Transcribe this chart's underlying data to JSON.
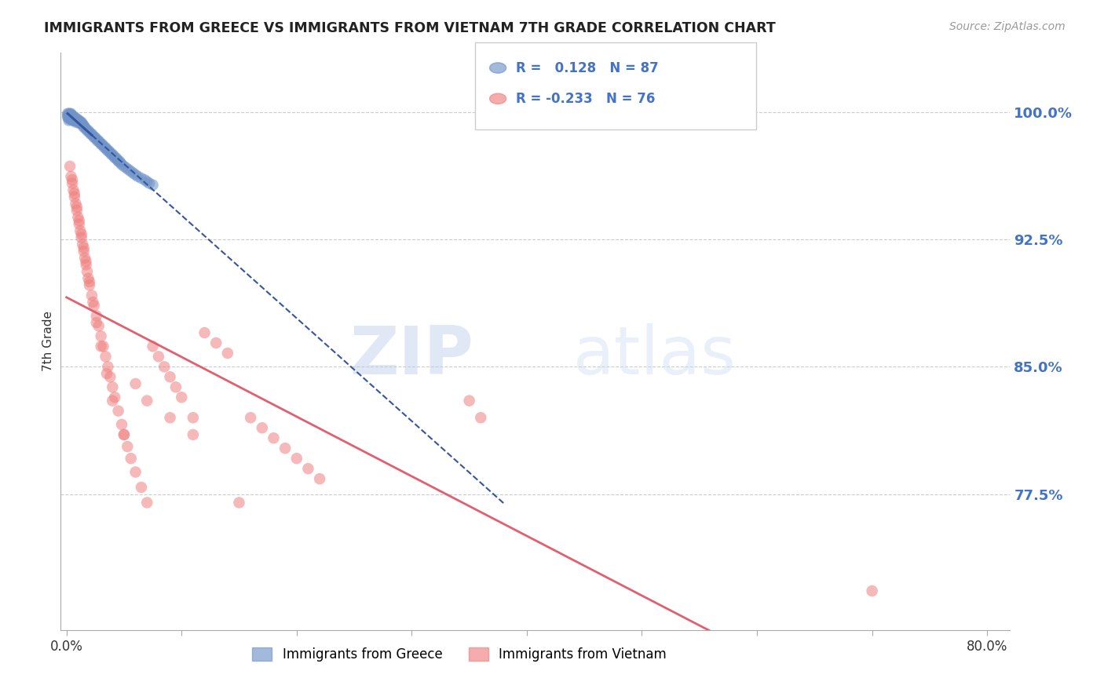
{
  "title": "IMMIGRANTS FROM GREECE VS IMMIGRANTS FROM VIETNAM 7TH GRADE CORRELATION CHART",
  "source": "Source: ZipAtlas.com",
  "ylabel": "7th Grade",
  "ytick_labels": [
    "100.0%",
    "92.5%",
    "85.0%",
    "77.5%"
  ],
  "ytick_values": [
    1.0,
    0.925,
    0.85,
    0.775
  ],
  "ymin": 0.695,
  "ymax": 1.035,
  "xmin": -0.005,
  "xmax": 0.82,
  "N_greece": 87,
  "N_vietnam": 76,
  "color_greece": "#7094c8",
  "color_vietnam": "#f08080",
  "trendline_greece": "#3555a0",
  "trendline_vietnam": "#e06070",
  "watermark_zip": "ZIP",
  "watermark_atlas": "atlas",
  "greece_x": [
    0.001,
    0.001,
    0.001,
    0.002,
    0.002,
    0.002,
    0.002,
    0.002,
    0.003,
    0.003,
    0.003,
    0.003,
    0.004,
    0.004,
    0.004,
    0.004,
    0.005,
    0.005,
    0.005,
    0.005,
    0.006,
    0.006,
    0.006,
    0.007,
    0.007,
    0.007,
    0.008,
    0.008,
    0.008,
    0.009,
    0.009,
    0.01,
    0.01,
    0.011,
    0.011,
    0.012,
    0.012,
    0.013,
    0.013,
    0.014,
    0.015,
    0.015,
    0.016,
    0.017,
    0.018,
    0.019,
    0.02,
    0.021,
    0.022,
    0.023,
    0.024,
    0.025,
    0.026,
    0.027,
    0.028,
    0.029,
    0.03,
    0.031,
    0.032,
    0.033,
    0.034,
    0.035,
    0.036,
    0.037,
    0.038,
    0.039,
    0.04,
    0.041,
    0.042,
    0.043,
    0.044,
    0.045,
    0.046,
    0.047,
    0.048,
    0.05,
    0.052,
    0.054,
    0.056,
    0.058,
    0.06,
    0.062,
    0.065,
    0.068,
    0.07,
    0.072,
    0.075
  ],
  "greece_y": [
    0.999,
    0.998,
    0.997,
    0.999,
    0.998,
    0.997,
    0.996,
    0.995,
    0.999,
    0.998,
    0.997,
    0.996,
    0.999,
    0.998,
    0.997,
    0.996,
    0.998,
    0.997,
    0.996,
    0.995,
    0.997,
    0.996,
    0.995,
    0.997,
    0.996,
    0.995,
    0.996,
    0.995,
    0.994,
    0.996,
    0.995,
    0.995,
    0.994,
    0.995,
    0.994,
    0.994,
    0.993,
    0.994,
    0.993,
    0.993,
    0.992,
    0.991,
    0.991,
    0.99,
    0.989,
    0.989,
    0.988,
    0.987,
    0.987,
    0.986,
    0.985,
    0.985,
    0.984,
    0.983,
    0.983,
    0.982,
    0.981,
    0.981,
    0.98,
    0.979,
    0.979,
    0.978,
    0.977,
    0.977,
    0.976,
    0.975,
    0.975,
    0.974,
    0.973,
    0.973,
    0.972,
    0.971,
    0.971,
    0.97,
    0.969,
    0.968,
    0.967,
    0.966,
    0.965,
    0.964,
    0.963,
    0.962,
    0.961,
    0.96,
    0.959,
    0.958,
    0.957
  ],
  "vietnam_x": [
    0.003,
    0.004,
    0.005,
    0.006,
    0.007,
    0.008,
    0.009,
    0.01,
    0.011,
    0.012,
    0.013,
    0.014,
    0.015,
    0.016,
    0.017,
    0.018,
    0.019,
    0.02,
    0.022,
    0.024,
    0.026,
    0.028,
    0.03,
    0.032,
    0.034,
    0.036,
    0.038,
    0.04,
    0.042,
    0.045,
    0.048,
    0.05,
    0.053,
    0.056,
    0.06,
    0.065,
    0.07,
    0.075,
    0.08,
    0.085,
    0.09,
    0.095,
    0.1,
    0.11,
    0.12,
    0.13,
    0.14,
    0.15,
    0.16,
    0.17,
    0.18,
    0.19,
    0.2,
    0.21,
    0.22,
    0.005,
    0.007,
    0.009,
    0.011,
    0.013,
    0.015,
    0.017,
    0.02,
    0.023,
    0.026,
    0.03,
    0.035,
    0.04,
    0.05,
    0.06,
    0.07,
    0.09,
    0.11,
    0.35,
    0.36,
    0.7
  ],
  "vietnam_y": [
    0.968,
    0.962,
    0.958,
    0.954,
    0.95,
    0.946,
    0.942,
    0.938,
    0.934,
    0.93,
    0.926,
    0.922,
    0.918,
    0.914,
    0.91,
    0.906,
    0.902,
    0.898,
    0.892,
    0.886,
    0.88,
    0.874,
    0.868,
    0.862,
    0.856,
    0.85,
    0.844,
    0.838,
    0.832,
    0.824,
    0.816,
    0.81,
    0.803,
    0.796,
    0.788,
    0.779,
    0.77,
    0.862,
    0.856,
    0.85,
    0.844,
    0.838,
    0.832,
    0.82,
    0.87,
    0.864,
    0.858,
    0.77,
    0.82,
    0.814,
    0.808,
    0.802,
    0.796,
    0.79,
    0.784,
    0.96,
    0.952,
    0.944,
    0.936,
    0.928,
    0.92,
    0.912,
    0.9,
    0.888,
    0.876,
    0.862,
    0.846,
    0.83,
    0.81,
    0.84,
    0.83,
    0.82,
    0.81,
    0.83,
    0.82,
    0.718
  ]
}
